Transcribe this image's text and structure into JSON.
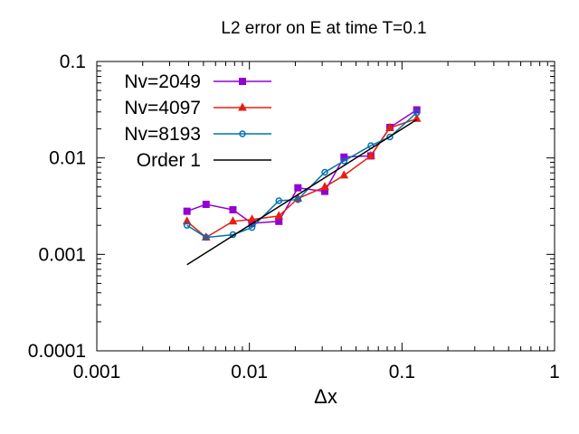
{
  "chart_data": {
    "type": "line",
    "title": "L2 error on E at time T=0.1",
    "xlabel": "Δx",
    "ylabel": "",
    "xscale": "log",
    "yscale": "log",
    "xlim": [
      0.001,
      1
    ],
    "ylim": [
      0.0001,
      0.1
    ],
    "xticks": [
      {
        "value": 0.001,
        "label": "0.001"
      },
      {
        "value": 0.01,
        "label": "0.01"
      },
      {
        "value": 0.1,
        "label": "0.1"
      },
      {
        "value": 1,
        "label": "1"
      }
    ],
    "yticks": [
      {
        "value": 0.0001,
        "label": "0.0001"
      },
      {
        "value": 0.001,
        "label": "0.001"
      },
      {
        "value": 0.01,
        "label": "0.01"
      },
      {
        "value": 0.1,
        "label": "0.1"
      }
    ],
    "grid": false,
    "legend_position": "top-left",
    "series": [
      {
        "name": "Nv=2049",
        "color": "#9400d3",
        "marker": "square",
        "x": [
          0.0039,
          0.0052,
          0.0078,
          0.0104,
          0.0156,
          0.0208,
          0.0312,
          0.0417,
          0.0625,
          0.0833,
          0.125
        ],
        "y": [
          0.0028,
          0.0033,
          0.0029,
          0.0021,
          0.0022,
          0.0049,
          0.0045,
          0.0102,
          0.0105,
          0.0207,
          0.0315
        ]
      },
      {
        "name": "Nv=4097",
        "color": "#e51e10",
        "marker": "triangle",
        "x": [
          0.0039,
          0.0052,
          0.0078,
          0.0104,
          0.0156,
          0.0208,
          0.0312,
          0.0417,
          0.0625,
          0.0833,
          0.125
        ],
        "y": [
          0.0022,
          0.0015,
          0.0022,
          0.0023,
          0.0025,
          0.0038,
          0.005,
          0.0066,
          0.0105,
          0.0205,
          0.0255
        ]
      },
      {
        "name": "Nv=8193",
        "color": "#0072b2",
        "marker": "circle",
        "x": [
          0.0039,
          0.0052,
          0.0078,
          0.0104,
          0.0156,
          0.0208,
          0.0312,
          0.0417,
          0.0625,
          0.0833,
          0.125
        ],
        "y": [
          0.002,
          0.0015,
          0.0016,
          0.0019,
          0.0036,
          0.0037,
          0.0071,
          0.0093,
          0.0134,
          0.0165,
          0.0295
        ]
      },
      {
        "name": "Order 1",
        "color": "#000000",
        "marker": "none",
        "x": [
          0.0039,
          0.125
        ],
        "y": [
          0.00078,
          0.025
        ]
      }
    ]
  }
}
